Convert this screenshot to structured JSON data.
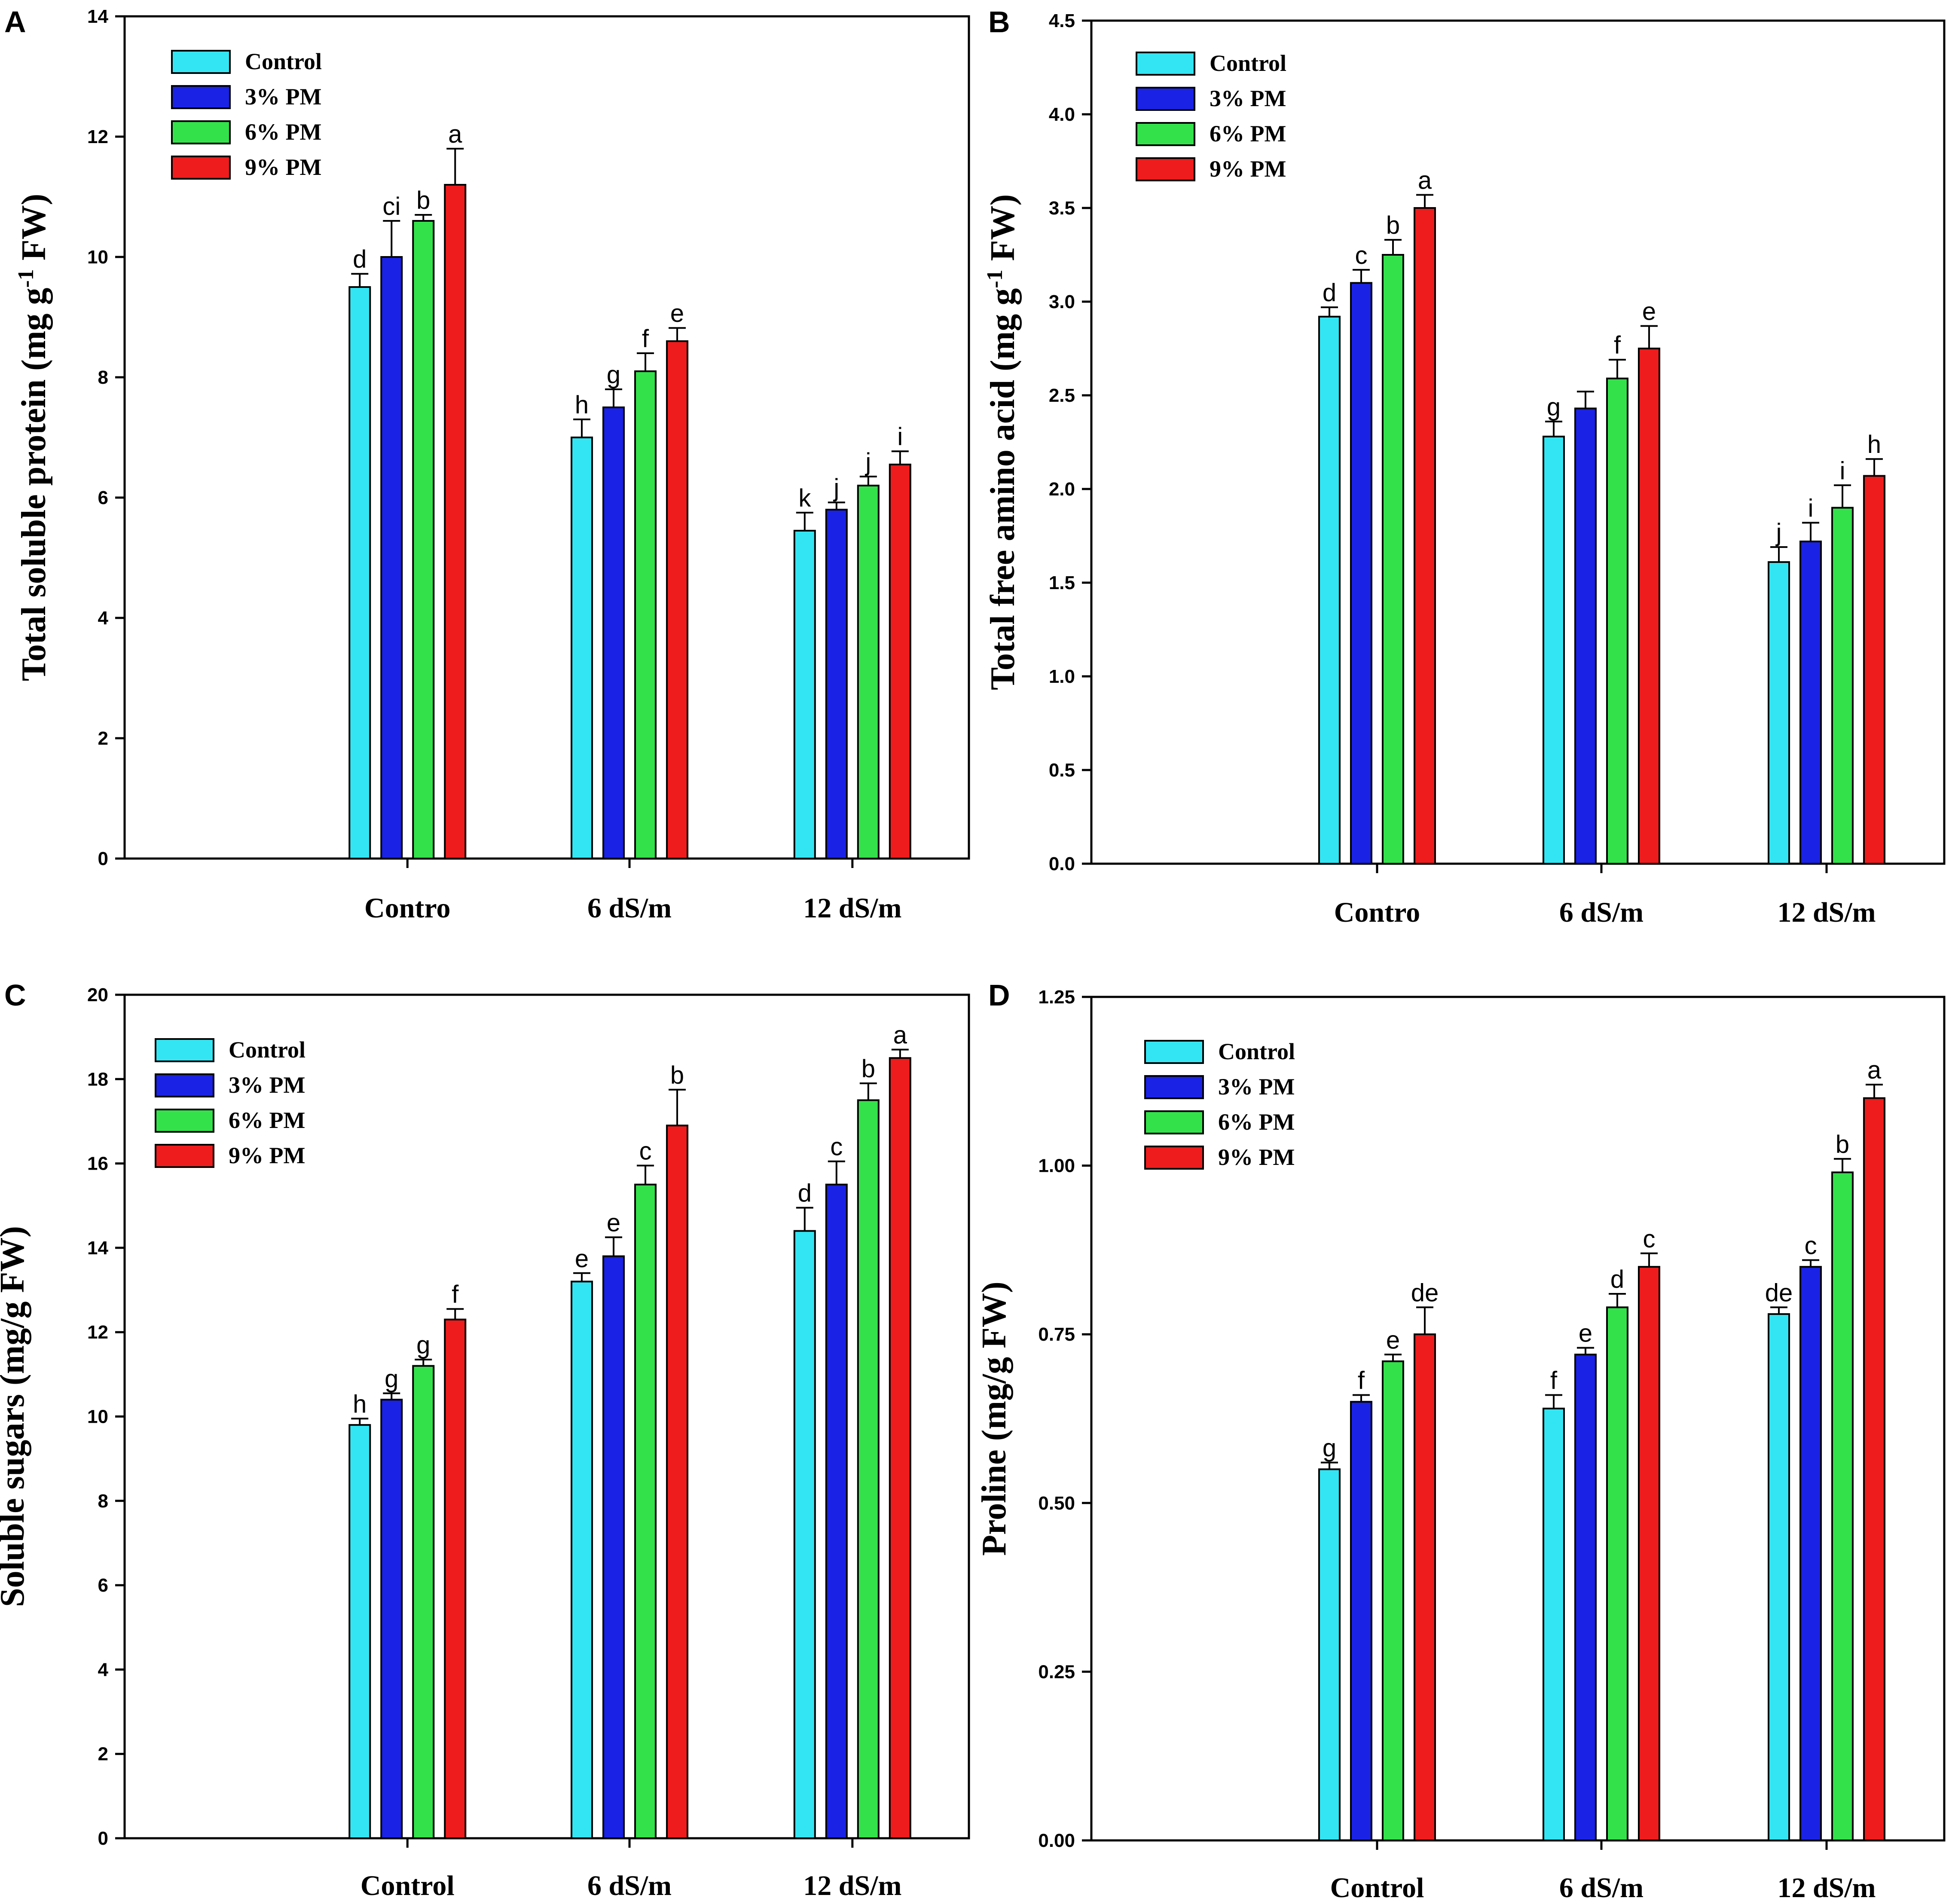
{
  "colors": {
    "Control": "#33e5f2",
    "3% PM": "#1a22e6",
    "6% PM": "#33e14a",
    "9% PM": "#ee1c1c"
  },
  "chart_data": [
    {
      "id": "A",
      "type": "bar",
      "panel_letter": "A",
      "ylabel": "Total soluble protein (mg g",
      "ylabel_sup": "-1",
      "ylabel_end": " FW)",
      "ylim": [
        0,
        14
      ],
      "yticks": [
        0,
        2,
        4,
        6,
        8,
        10,
        12,
        14
      ],
      "ytick_labels": [
        "0",
        "2",
        "4",
        "6",
        "8",
        "10",
        "12",
        "14"
      ],
      "categories": [
        "Contro",
        "6 dS/m",
        "12 dS/m"
      ],
      "legend": [
        "Control",
        "3% PM",
        "6% PM",
        "9% PM"
      ],
      "series": [
        {
          "name": "Control",
          "values": [
            9.5,
            7.0,
            5.45
          ],
          "errors": [
            0.22,
            0.3,
            0.3
          ],
          "labels": [
            "d",
            "h",
            "k"
          ]
        },
        {
          "name": "3% PM",
          "values": [
            10.0,
            7.5,
            5.8
          ],
          "errors": [
            0.6,
            0.3,
            0.12
          ],
          "labels": [
            "ci",
            "g",
            "j"
          ]
        },
        {
          "name": "6% PM",
          "values": [
            10.6,
            8.1,
            6.2
          ],
          "errors": [
            0.1,
            0.3,
            0.15
          ],
          "labels": [
            "b",
            "f",
            "j"
          ]
        },
        {
          "name": "9% PM",
          "values": [
            11.2,
            8.6,
            6.55
          ],
          "errors": [
            0.6,
            0.22,
            0.22
          ],
          "labels": [
            "a",
            "e",
            "i"
          ]
        }
      ]
    },
    {
      "id": "B",
      "type": "bar",
      "panel_letter": "B",
      "ylabel": "Total free amino acid (mg g",
      "ylabel_sup": "-1",
      "ylabel_end": " FW)",
      "ylim": [
        0,
        4.5
      ],
      "yticks": [
        0,
        0.5,
        1,
        1.5,
        2,
        2.5,
        3,
        3.5,
        4,
        4.5
      ],
      "ytick_labels": [
        "0.0",
        "0.5",
        "1.0",
        "1.5",
        "2.0",
        "2.5",
        "3.0",
        "3.5",
        "4.0",
        "4.5"
      ],
      "categories": [
        "Contro",
        "6 dS/m",
        "12 dS/m"
      ],
      "legend": [
        "Control",
        "3% PM",
        "6% PM",
        "9% PM"
      ],
      "series": [
        {
          "name": "Control",
          "values": [
            2.92,
            2.28,
            1.61
          ],
          "errors": [
            0.05,
            0.08,
            0.08
          ],
          "labels": [
            "d",
            "g",
            "j"
          ]
        },
        {
          "name": "3% PM",
          "values": [
            3.1,
            2.43,
            1.72
          ],
          "errors": [
            0.07,
            0.09,
            0.1
          ],
          "labels": [
            "c",
            "",
            "i"
          ]
        },
        {
          "name": "6% PM",
          "values": [
            3.25,
            2.59,
            1.9
          ],
          "errors": [
            0.08,
            0.1,
            0.12
          ],
          "labels": [
            "b",
            "f",
            "i"
          ]
        },
        {
          "name": "9% PM",
          "values": [
            3.5,
            2.75,
            2.07
          ],
          "errors": [
            0.07,
            0.12,
            0.09
          ],
          "labels": [
            "a",
            "e",
            "h"
          ]
        }
      ]
    },
    {
      "id": "C",
      "type": "bar",
      "panel_letter": "C",
      "ylabel": "Soluble sugars (mg/g FW)",
      "ylabel_sup": "",
      "ylabel_end": "",
      "ylim": [
        0,
        20
      ],
      "yticks": [
        0,
        2,
        4,
        6,
        8,
        10,
        12,
        14,
        16,
        18,
        20
      ],
      "ytick_labels": [
        "0",
        "2",
        "4",
        "6",
        "8",
        "10",
        "12",
        "14",
        "16",
        "18",
        "20"
      ],
      "categories": [
        "Control",
        "6 dS/m",
        "12 dS/m"
      ],
      "legend": [
        "Control",
        "3% PM",
        "6% PM",
        "9% PM"
      ],
      "series": [
        {
          "name": "Control",
          "values": [
            9.8,
            13.2,
            14.4
          ],
          "errors": [
            0.15,
            0.2,
            0.55
          ],
          "labels": [
            "h",
            "e",
            "d"
          ]
        },
        {
          "name": "3% PM",
          "values": [
            10.4,
            13.8,
            15.5
          ],
          "errors": [
            0.15,
            0.45,
            0.55
          ],
          "labels": [
            "g",
            "e",
            "c"
          ]
        },
        {
          "name": "6% PM",
          "values": [
            11.2,
            15.5,
            17.5
          ],
          "errors": [
            0.15,
            0.45,
            0.4
          ],
          "labels": [
            "g",
            "c",
            "b"
          ]
        },
        {
          "name": "9% PM",
          "values": [
            12.3,
            16.9,
            18.5
          ],
          "errors": [
            0.25,
            0.85,
            0.2
          ],
          "labels": [
            "f",
            "b",
            "a"
          ]
        }
      ]
    },
    {
      "id": "D",
      "type": "bar",
      "panel_letter": "D",
      "ylabel": "Proline (mg/g FW)",
      "ylabel_sup": "",
      "ylabel_end": "",
      "ylim": [
        0,
        1.25
      ],
      "yticks": [
        0,
        0.25,
        0.5,
        0.75,
        1.0,
        1.25
      ],
      "ytick_labels": [
        "0.00",
        "0.25",
        "0.50",
        "0.75",
        "1.00",
        "1.25"
      ],
      "categories": [
        "Control",
        "6 dS/m",
        "12 dS/m"
      ],
      "legend": [
        "Control",
        "3% PM",
        "6% PM",
        "9% PM"
      ],
      "series": [
        {
          "name": "Control",
          "values": [
            0.55,
            0.64,
            0.78
          ],
          "errors": [
            0.01,
            0.02,
            0.01
          ],
          "labels": [
            "g",
            "f",
            "de"
          ]
        },
        {
          "name": "3% PM",
          "values": [
            0.65,
            0.72,
            0.85
          ],
          "errors": [
            0.01,
            0.01,
            0.01
          ],
          "labels": [
            "f",
            "e",
            "c"
          ]
        },
        {
          "name": "6% PM",
          "values": [
            0.71,
            0.79,
            0.99
          ],
          "errors": [
            0.01,
            0.02,
            0.02
          ],
          "labels": [
            "e",
            "d",
            "b"
          ]
        },
        {
          "name": "9% PM",
          "values": [
            0.75,
            0.85,
            1.1
          ],
          "errors": [
            0.04,
            0.02,
            0.02
          ],
          "labels": [
            "de",
            "c",
            "a"
          ]
        }
      ]
    }
  ]
}
